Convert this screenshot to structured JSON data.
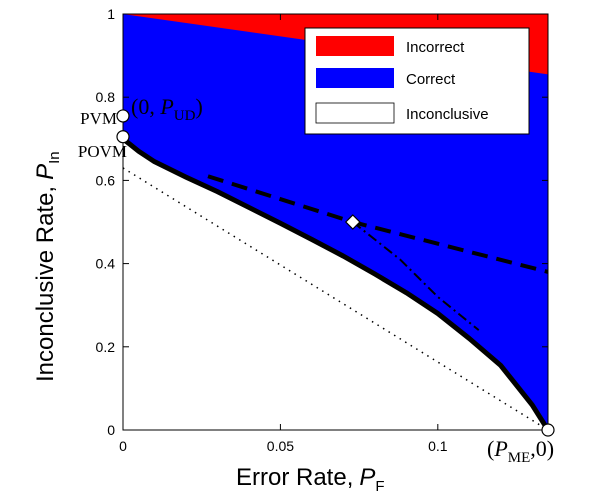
{
  "chart_data": {
    "type": "area",
    "xlabel": "Error Rate,",
    "xlabel_var": "P",
    "xlabel_sub": "F",
    "ylabel": "Inconclusive Rate,",
    "ylabel_var": "P",
    "ylabel_sub": "In",
    "xlim": [
      0,
      0.135
    ],
    "ylim": [
      0,
      1
    ],
    "xticks": [
      0,
      0.05,
      0.1
    ],
    "xtick_labels": [
      "0",
      "0.05",
      "0.1"
    ],
    "yticks": [
      0,
      0.2,
      0.4,
      0.6,
      0.8,
      1
    ],
    "ytick_labels": [
      "0",
      "0.2",
      "0.4",
      "0.6",
      "0.8",
      "1"
    ],
    "legend": {
      "position": "top-right",
      "entries": [
        {
          "label": "Incorrect",
          "color": "#ff0000"
        },
        {
          "label": "Correct",
          "color": "#0000ff"
        },
        {
          "label": "Inconclusive",
          "color": "#ffffff"
        }
      ]
    },
    "regions": {
      "incorrect_lower_boundary": {
        "x": [
          0,
          0.135
        ],
        "y": [
          1.0,
          0.855
        ]
      },
      "correct_lower_boundary": "optimal_curve"
    },
    "series": [
      {
        "style": "solid-thick",
        "x": [
          0,
          0.005,
          0.01,
          0.02,
          0.03,
          0.04,
          0.05,
          0.06,
          0.07,
          0.08,
          0.09,
          0.1,
          0.11,
          0.12,
          0.13,
          0.135
        ],
        "y": [
          0.7,
          0.67,
          0.645,
          0.608,
          0.573,
          0.535,
          0.497,
          0.458,
          0.418,
          0.375,
          0.33,
          0.28,
          0.22,
          0.155,
          0.06,
          0.0
        ]
      },
      {
        "style": "dashed-thick",
        "x": [
          0.027,
          0.073,
          0.135
        ],
        "y": [
          0.61,
          0.5,
          0.38
        ]
      },
      {
        "style": "dash-dot",
        "x": [
          0.073,
          0.088,
          0.1,
          0.113
        ],
        "y": [
          0.5,
          0.41,
          0.32,
          0.24
        ]
      },
      {
        "style": "dotted",
        "x": [
          0,
          0.135
        ],
        "y": [
          0.63,
          0.0
        ]
      }
    ],
    "points": [
      {
        "shape": "circle",
        "x": 0,
        "y": 0.755
      },
      {
        "shape": "circle",
        "x": 0,
        "y": 0.705
      },
      {
        "shape": "circle",
        "x": 0.135,
        "y": 0.0
      },
      {
        "shape": "diamond",
        "x": 0.073,
        "y": 0.5
      }
    ],
    "annotations": {
      "pvm": "PVM",
      "povm": "POVM",
      "pud_open": "(0, ",
      "pud_var": "P",
      "pud_sub": "UD",
      "pud_close": ")",
      "pme_open": "(",
      "pme_var": "P",
      "pme_sub": "ME",
      "pme_close": ",0)"
    }
  }
}
